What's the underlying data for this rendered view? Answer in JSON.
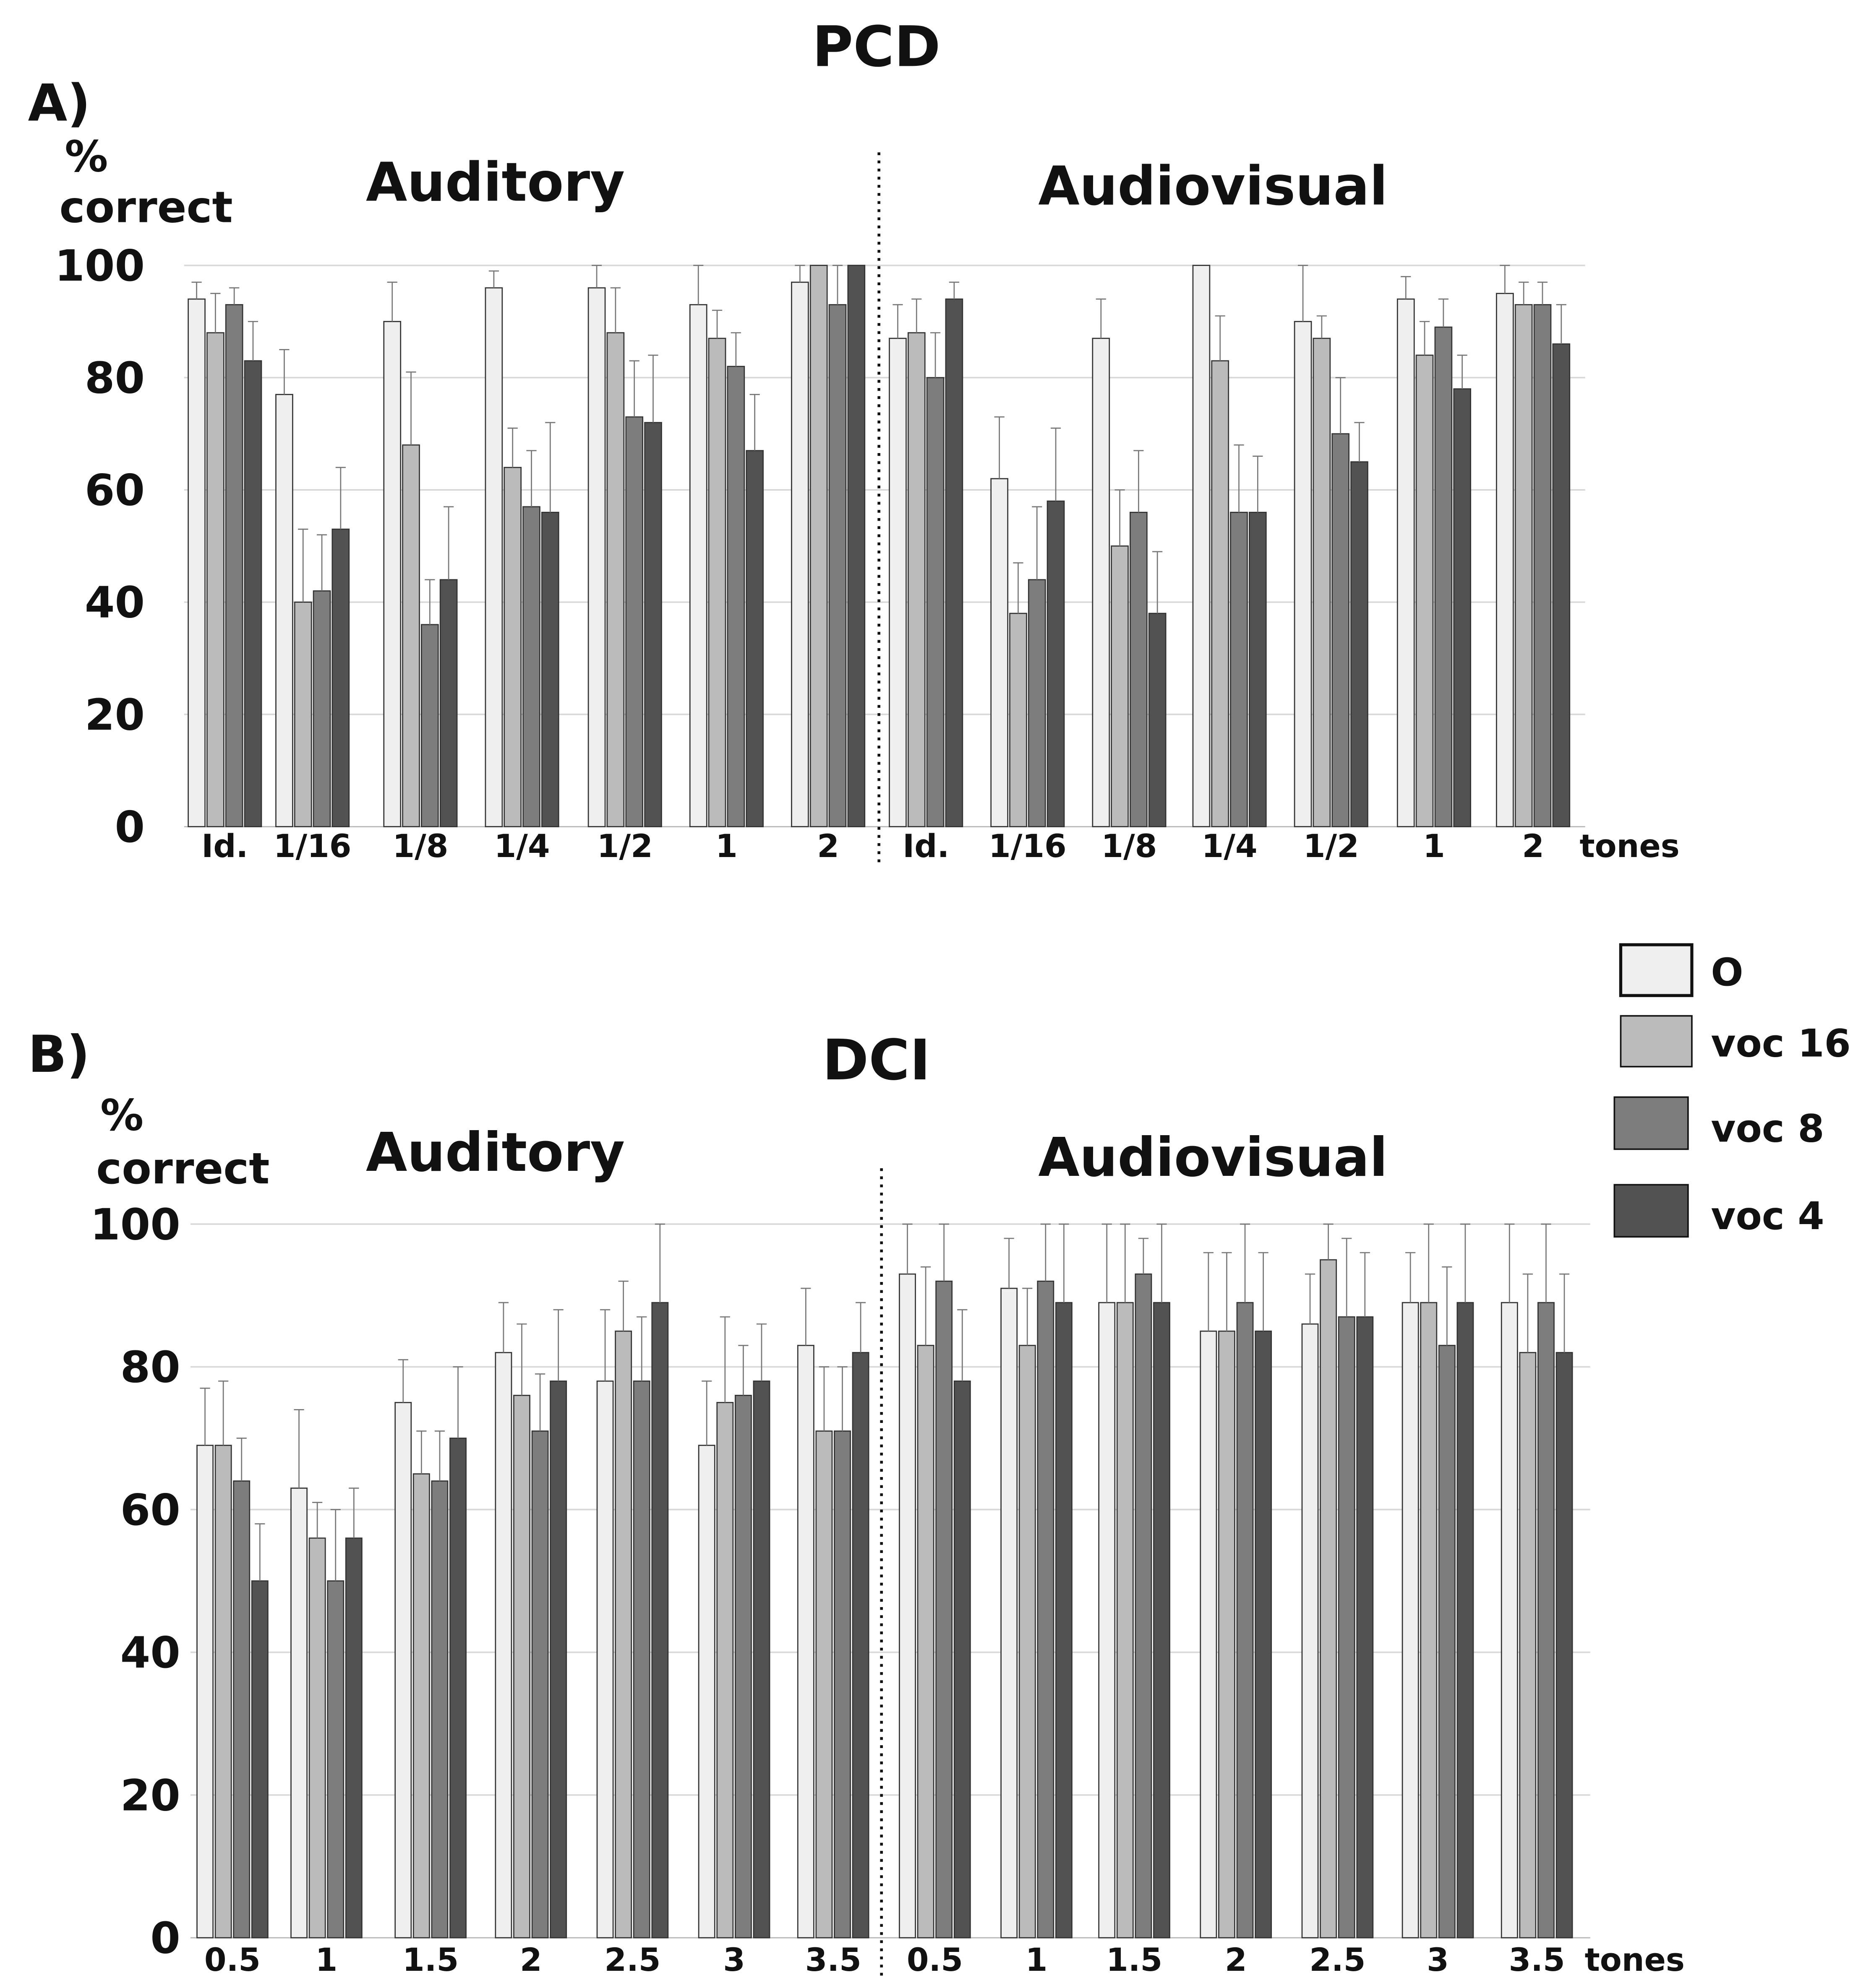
{
  "chart_data": [
    {
      "type": "bar",
      "panel_label": "A)",
      "title": "PCD",
      "ylabel_line1": "%",
      "ylabel_line2": "correct",
      "ylim": [
        0,
        100
      ],
      "yticks": [
        "0",
        "20",
        "40",
        "60",
        "80",
        "100"
      ],
      "unit_label": "tones",
      "grid": true,
      "groups": [
        {
          "name": "Auditory",
          "categories": [
            "Id.",
            "1/16",
            "1/8",
            "1/4",
            "1/2",
            "1",
            "2"
          ],
          "series": [
            {
              "name": "O",
              "values": [
                94,
                77,
                90,
                96,
                96,
                93,
                97
              ],
              "errors": [
                3,
                8,
                7,
                3,
                4,
                7,
                4
              ]
            },
            {
              "name": "voc 16",
              "values": [
                88,
                40,
                68,
                64,
                88,
                87,
                100
              ],
              "errors": [
                7,
                13,
                13,
                7,
                8,
                5,
                0
              ]
            },
            {
              "name": "voc 8",
              "values": [
                93,
                42,
                36,
                57,
                73,
                82,
                93
              ],
              "errors": [
                3,
                10,
                8,
                10,
                10,
                6,
                7
              ]
            },
            {
              "name": "voc 4",
              "values": [
                83,
                53,
                44,
                56,
                72,
                67,
                100
              ],
              "errors": [
                7,
                11,
                13,
                16,
                12,
                10,
                0
              ]
            }
          ]
        },
        {
          "name": "Audiovisual",
          "categories": [
            "Id.",
            "1/16",
            "1/8",
            "1/4",
            "1/2",
            "1",
            "2"
          ],
          "series": [
            {
              "name": "O",
              "values": [
                87,
                62,
                87,
                100,
                90,
                94,
                95
              ],
              "errors": [
                6,
                11,
                7,
                0,
                10,
                4,
                5
              ]
            },
            {
              "name": "voc 16",
              "values": [
                88,
                38,
                50,
                83,
                87,
                84,
                93
              ],
              "errors": [
                6,
                9,
                10,
                8,
                4,
                6,
                4
              ]
            },
            {
              "name": "voc 8",
              "values": [
                80,
                44,
                56,
                56,
                70,
                89,
                93
              ],
              "errors": [
                8,
                13,
                11,
                12,
                10,
                5,
                4
              ]
            },
            {
              "name": "voc 4",
              "values": [
                94,
                58,
                38,
                56,
                65,
                78,
                86
              ],
              "errors": [
                3,
                13,
                11,
                10,
                7,
                6,
                7
              ]
            }
          ]
        }
      ]
    },
    {
      "type": "bar",
      "panel_label": "B)",
      "title": "DCI",
      "ylabel_line1": "%",
      "ylabel_line2": "correct",
      "ylim": [
        0,
        100
      ],
      "yticks": [
        "0",
        "20",
        "40",
        "60",
        "80",
        "100"
      ],
      "unit_label": "tones",
      "grid": true,
      "groups": [
        {
          "name": "Auditory",
          "categories": [
            "0.5",
            "1",
            "1.5",
            "2",
            "2.5",
            "3",
            "3.5"
          ],
          "series": [
            {
              "name": "O",
              "values": [
                69,
                63,
                75,
                82,
                78,
                69,
                83
              ],
              "errors": [
                8,
                11,
                6,
                7,
                10,
                9,
                8
              ]
            },
            {
              "name": "voc 16",
              "values": [
                69,
                56,
                65,
                76,
                85,
                75,
                71
              ],
              "errors": [
                9,
                5,
                6,
                10,
                7,
                12,
                9
              ]
            },
            {
              "name": "voc 8",
              "values": [
                64,
                50,
                64,
                71,
                78,
                76,
                71
              ],
              "errors": [
                6,
                10,
                7,
                8,
                9,
                7,
                9
              ]
            },
            {
              "name": "voc 4",
              "values": [
                50,
                56,
                70,
                78,
                89,
                78,
                82
              ],
              "errors": [
                8,
                7,
                10,
                10,
                11,
                8,
                7
              ]
            }
          ]
        },
        {
          "name": "Audiovisual",
          "categories": [
            "0.5",
            "1",
            "1.5",
            "2",
            "2.5",
            "3",
            "3.5"
          ],
          "series": [
            {
              "name": "O",
              "values": [
                93,
                91,
                89,
                85,
                86,
                89,
                89
              ],
              "errors": [
                7,
                7,
                11,
                11,
                7,
                7,
                11
              ]
            },
            {
              "name": "voc 16",
              "values": [
                83,
                83,
                89,
                85,
                95,
                89,
                82
              ],
              "errors": [
                11,
                8,
                11,
                11,
                5,
                11,
                11
              ]
            },
            {
              "name": "voc 8",
              "values": [
                92,
                92,
                93,
                89,
                87,
                83,
                89
              ],
              "errors": [
                8,
                8,
                5,
                11,
                11,
                11,
                11
              ]
            },
            {
              "name": "voc 4",
              "values": [
                78,
                89,
                89,
                85,
                87,
                89,
                82
              ],
              "errors": [
                10,
                11,
                11,
                11,
                9,
                11,
                11
              ]
            }
          ]
        }
      ]
    }
  ],
  "legend": [
    {
      "name": "O",
      "color": "#efefef"
    },
    {
      "name": "voc 16",
      "color": "#bbbbbb"
    },
    {
      "name": "voc 8",
      "color": "#7d7d7d"
    },
    {
      "name": "voc 4",
      "color": "#525252"
    }
  ]
}
